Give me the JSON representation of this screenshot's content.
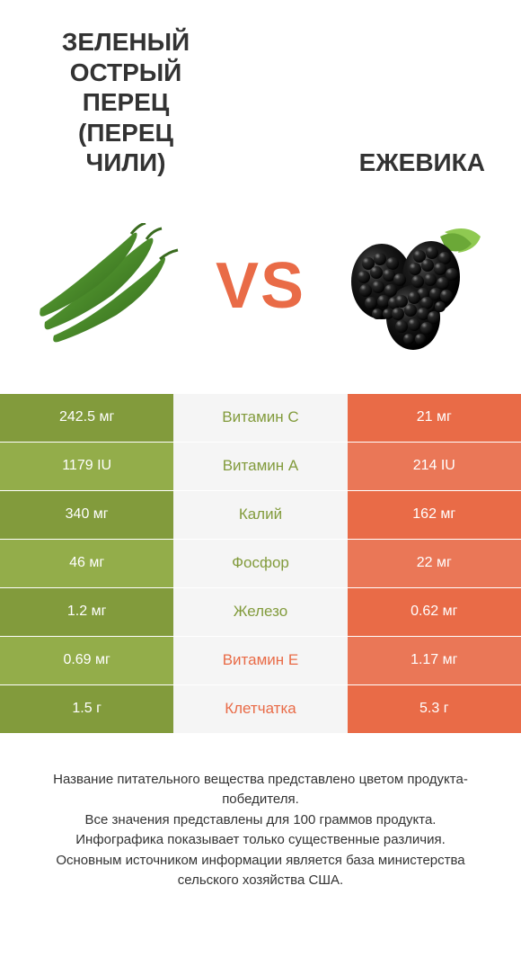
{
  "colors": {
    "green": "#829b3c",
    "orange": "#e96b47",
    "green_alt": "#93ad4a",
    "orange_alt": "#ea7757",
    "mid_bg": "#f5f5f5",
    "text": "#333333",
    "vs": "#e96b47"
  },
  "header": {
    "left_title": "ЗЕЛЕНЫЙ ОСТРЫЙ ПЕРЕЦ (ПЕРЕЦ ЧИЛИ)",
    "right_title": "ЕЖЕВИКА",
    "vs_v": "V",
    "vs_s": "S"
  },
  "rows": [
    {
      "left": "242.5 мг",
      "mid": "Витамин C",
      "right": "21 мг",
      "winner": "left"
    },
    {
      "left": "1179 IU",
      "mid": "Витамин A",
      "right": "214 IU",
      "winner": "left"
    },
    {
      "left": "340 мг",
      "mid": "Калий",
      "right": "162 мг",
      "winner": "left"
    },
    {
      "left": "46 мг",
      "mid": "Фосфор",
      "right": "22 мг",
      "winner": "left"
    },
    {
      "left": "1.2 мг",
      "mid": "Железо",
      "right": "0.62 мг",
      "winner": "left"
    },
    {
      "left": "0.69 мг",
      "mid": "Витамин E",
      "right": "1.17 мг",
      "winner": "right"
    },
    {
      "left": "1.5 г",
      "mid": "Клетчатка",
      "right": "5.3 г",
      "winner": "right"
    }
  ],
  "footer": {
    "line1": "Название питательного вещества представлено цветом продукта-победителя.",
    "line2": "Все значения представлены для 100 граммов продукта.",
    "line3": "Инфографика показывает только существенные различия.",
    "line4": "Основным источником информации является база министерства сельского хозяйства США."
  }
}
